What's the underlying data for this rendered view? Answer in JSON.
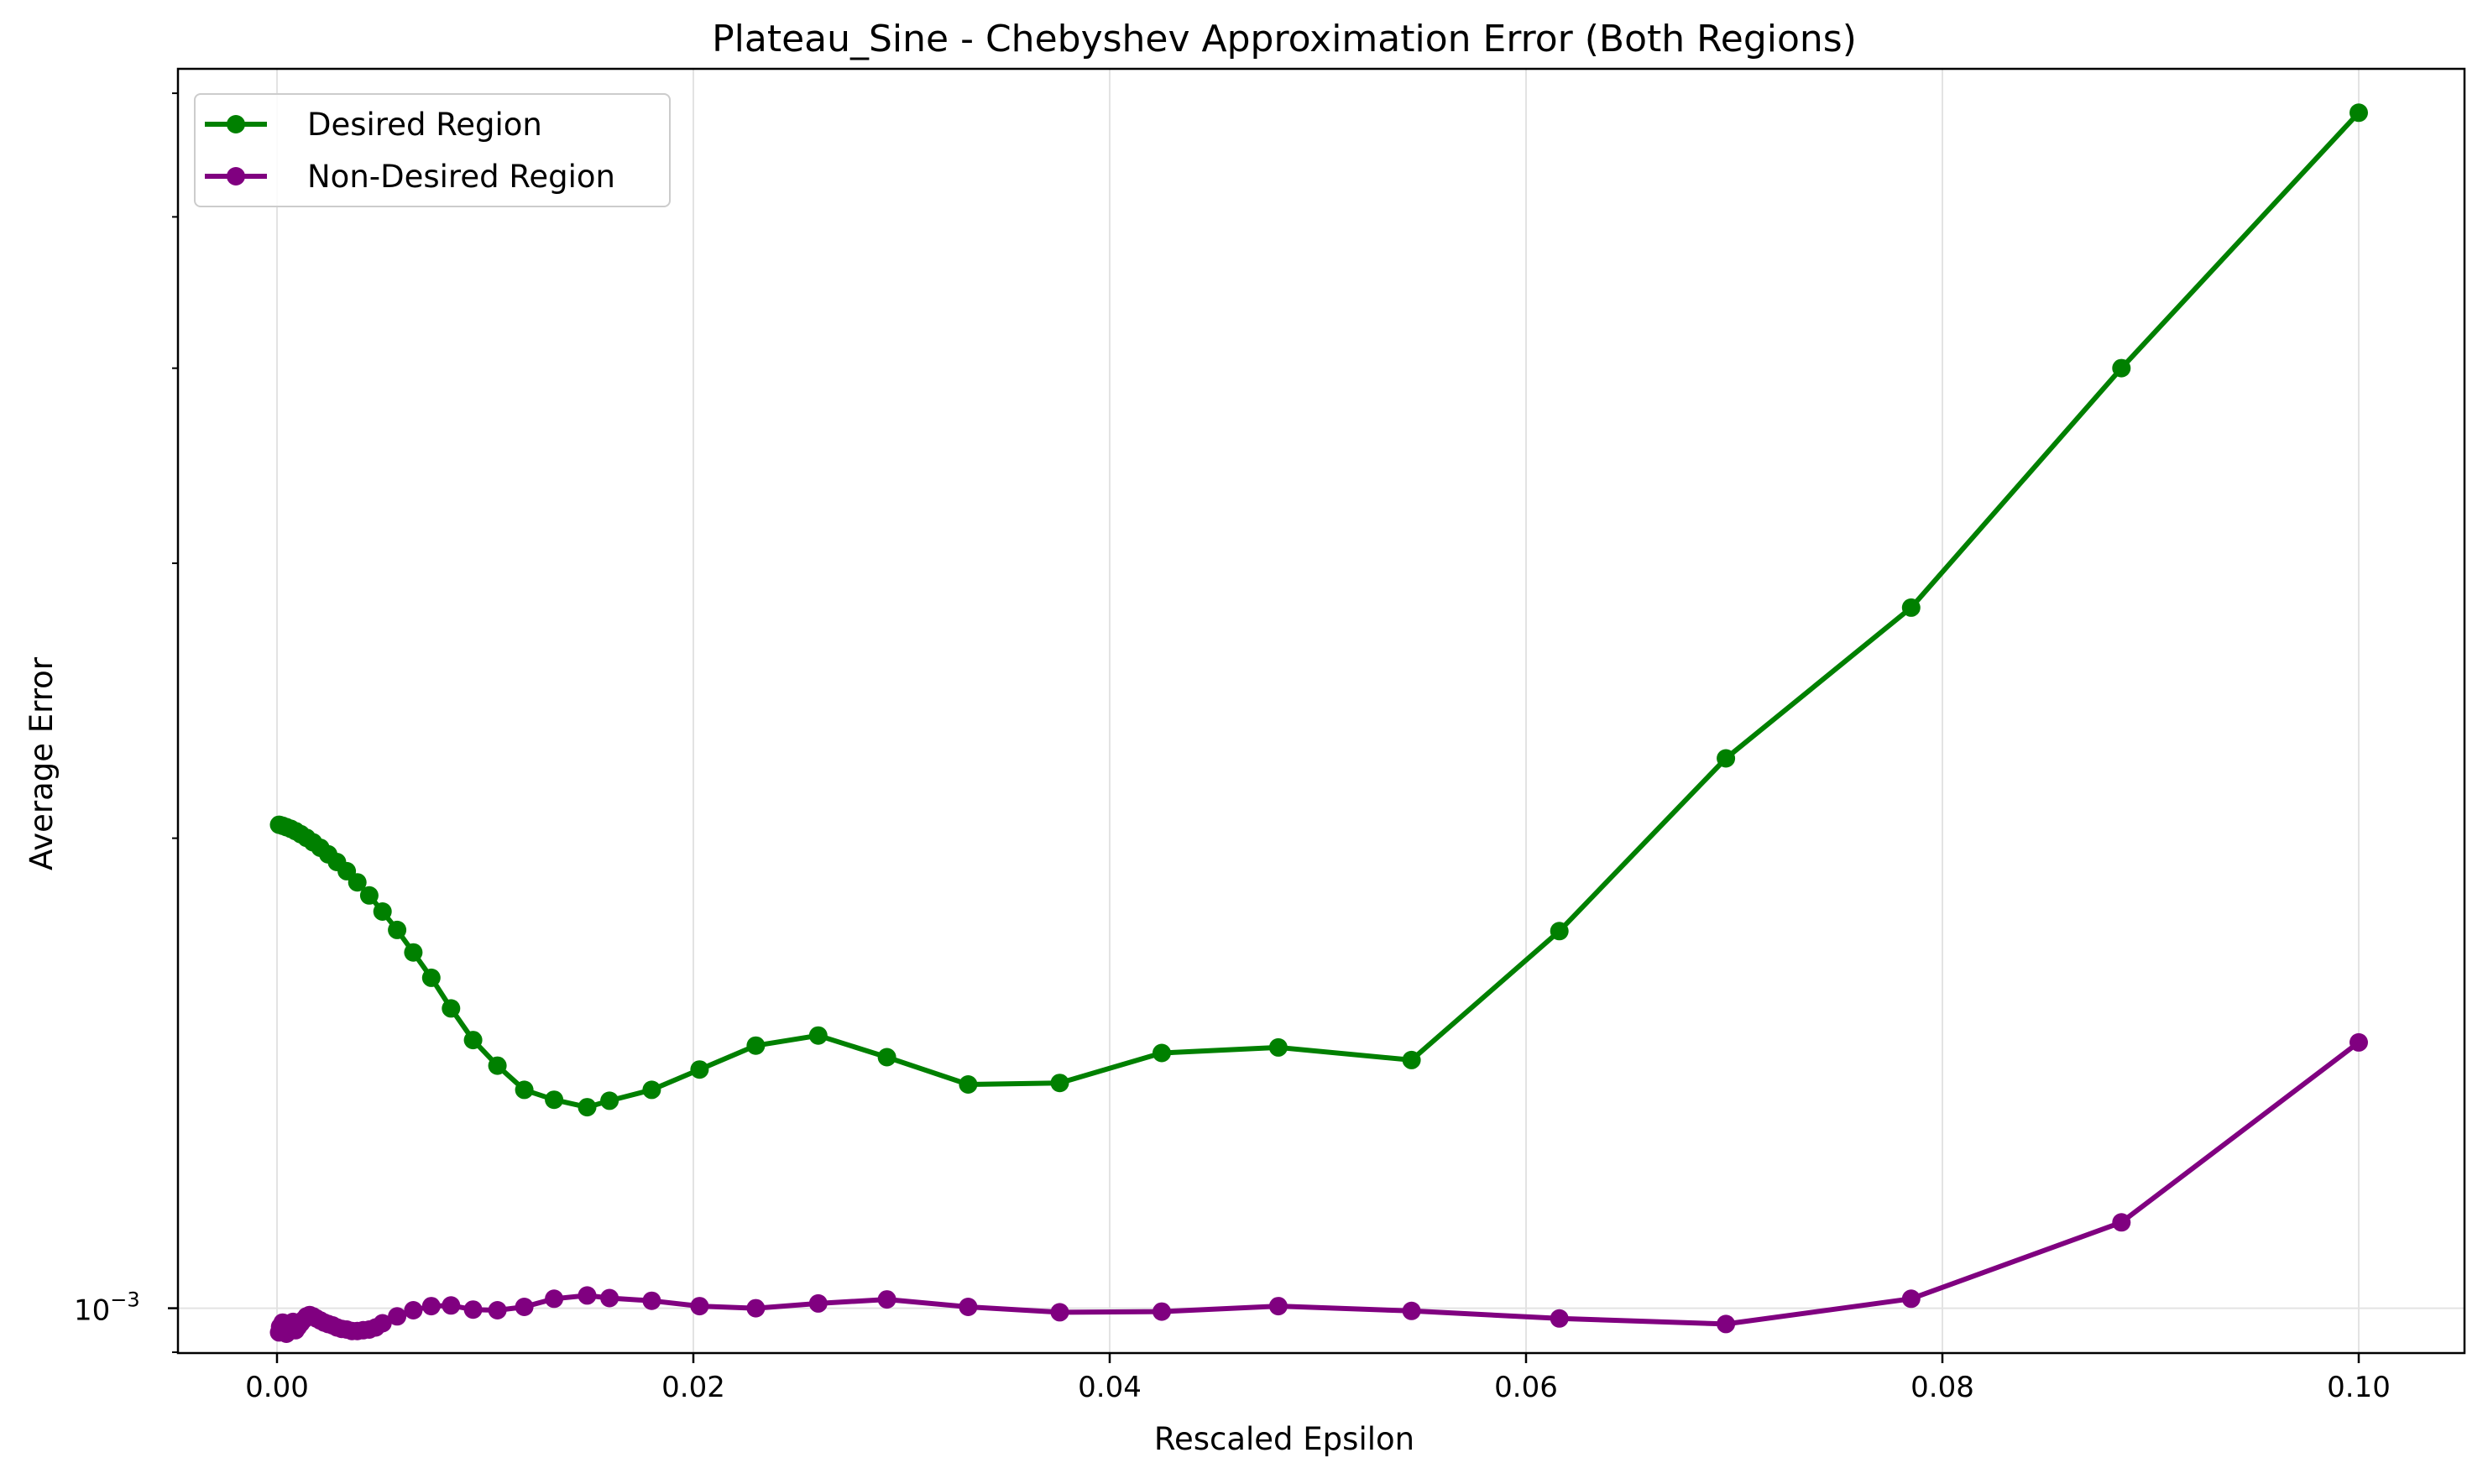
{
  "chart_data": {
    "type": "line",
    "title": "Plateau_Sine - Chebyshev Approximation Error (Both Regions)",
    "xlabel": "Rescaled Epsilon",
    "ylabel": "Average Error",
    "y_scale": "log",
    "xlim": [
      -0.0047,
      0.1047
    ],
    "ylim": [
      0.000936,
      0.00622
    ],
    "x_ticks": [
      0.0,
      0.02,
      0.04,
      0.06,
      0.08,
      0.1
    ],
    "x_tick_labels": [
      "0.00",
      "0.02",
      "0.04",
      "0.06",
      "0.08",
      "0.10"
    ],
    "y_major_ticks": [
      0.001
    ],
    "y_tick_labels": [
      "10"
    ],
    "y_tick_exponent": "−3",
    "y_minor_ticks": [
      0.002,
      0.003,
      0.004,
      0.005,
      0.006
    ],
    "grid": true,
    "legend_position": "top-left",
    "series": [
      {
        "name": "Desired Region",
        "color": "#008000",
        "x": [
          0.0001,
          0.00027,
          0.00045,
          0.00066,
          0.00089,
          0.00114,
          0.00142,
          0.00173,
          0.00208,
          0.00246,
          0.00288,
          0.00335,
          0.00386,
          0.00443,
          0.00507,
          0.00577,
          0.00655,
          0.00741,
          0.00836,
          0.00942,
          0.01059,
          0.01188,
          0.01331,
          0.0149,
          0.01597,
          0.018,
          0.0203,
          0.023,
          0.026,
          0.0293,
          0.0332,
          0.0376,
          0.0425,
          0.0481,
          0.0545,
          0.0616,
          0.0696,
          0.0785,
          0.0886,
          0.1
        ],
        "y": [
          0.00204,
          0.002037,
          0.002033,
          0.002028,
          0.002021,
          0.002012,
          0.002001,
          0.001988,
          0.001972,
          0.001953,
          0.001931,
          0.001905,
          0.001874,
          0.001838,
          0.001795,
          0.001747,
          0.00169,
          0.001628,
          0.001556,
          0.001485,
          0.00143,
          0.00138,
          0.00136,
          0.001345,
          0.001358,
          0.00138,
          0.001422,
          0.001473,
          0.001495,
          0.001448,
          0.001391,
          0.001394,
          0.001457,
          0.001469,
          0.001442,
          0.001744,
          0.00225,
          0.00281,
          0.004,
          0.00583
        ]
      },
      {
        "name": "Non-Desired Region",
        "color": "#800080",
        "x": [
          0.0001,
          0.00015,
          0.00027,
          0.00036,
          0.00045,
          0.00055,
          0.00066,
          0.00077,
          0.00089,
          0.00101,
          0.00114,
          0.00128,
          0.00142,
          0.00157,
          0.00173,
          0.0019,
          0.00208,
          0.00227,
          0.00246,
          0.00267,
          0.00288,
          0.00311,
          0.00335,
          0.0036,
          0.00386,
          0.00414,
          0.00443,
          0.00474,
          0.00507,
          0.00577,
          0.00655,
          0.00741,
          0.00836,
          0.00942,
          0.01059,
          0.01188,
          0.01331,
          0.0149,
          0.01597,
          0.018,
          0.0203,
          0.023,
          0.026,
          0.0293,
          0.0332,
          0.0376,
          0.0425,
          0.0481,
          0.0545,
          0.0616,
          0.0696,
          0.0785,
          0.0886,
          0.1
        ],
        "y": [
          0.000965,
          0.000973,
          0.000979,
          0.000971,
          0.000963,
          0.000966,
          0.000975,
          0.00098,
          0.000968,
          0.000973,
          0.000978,
          0.000983,
          0.000988,
          0.00099,
          0.000988,
          0.000985,
          0.000982,
          0.000979,
          0.000977,
          0.000975,
          0.000972,
          0.00097,
          0.000969,
          0.000967,
          0.000967,
          0.000968,
          0.000969,
          0.000972,
          0.000978,
          0.000988,
          0.000997,
          0.001003,
          0.001004,
          0.000998,
          0.000997,
          0.001002,
          0.001014,
          0.001019,
          0.001015,
          0.001011,
          0.001003,
          0.001,
          0.001007,
          0.001013,
          0.001002,
          0.000994,
          0.000995,
          0.001003,
          0.000996,
          0.000985,
          0.000977,
          0.001014,
          0.001135,
          0.00148
        ]
      }
    ]
  }
}
